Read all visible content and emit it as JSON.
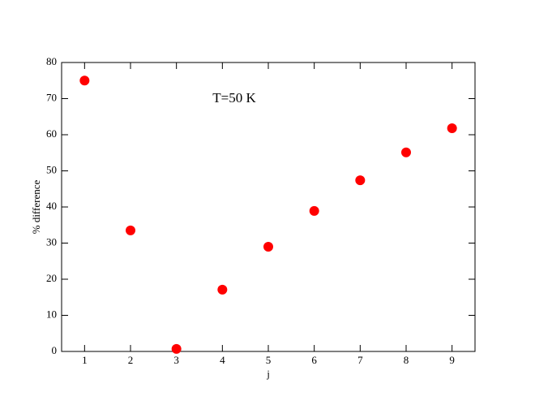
{
  "chart_data": {
    "type": "scatter",
    "x_label": "j",
    "y_label": "% difference",
    "annotation": "T=50 K",
    "series": [
      {
        "color": "#ff0000",
        "x": [
          1,
          2,
          3,
          4,
          5,
          6,
          7,
          8,
          9
        ],
        "values": [
          75.0,
          33.5,
          0.7,
          17.1,
          29.0,
          38.9,
          47.4,
          55.1,
          61.8
        ]
      }
    ],
    "xlim": [
      0.5,
      9.5
    ],
    "xticks": [
      1,
      2,
      3,
      4,
      5,
      6,
      7,
      8,
      9
    ],
    "ylim": [
      0,
      80
    ],
    "yticks": [
      0,
      10,
      20,
      30,
      40,
      50,
      60,
      70,
      80
    ]
  }
}
